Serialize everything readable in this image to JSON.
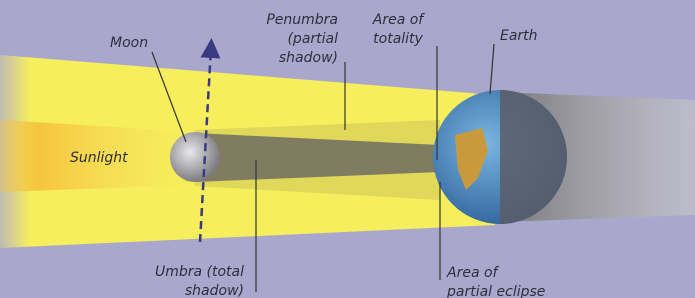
{
  "labels": {
    "moon": [
      "Moon"
    ],
    "penumbra": [
      "Penumbra",
      "(partial",
      "shadow)"
    ],
    "totality": [
      "Area of",
      "totality"
    ],
    "earth": [
      "Earth"
    ],
    "sunlight": [
      "Sunlight"
    ],
    "umbra": [
      "Umbra (total",
      "shadow)"
    ],
    "partial_eclipse": [
      "Area of",
      "partial eclipse"
    ]
  }
}
